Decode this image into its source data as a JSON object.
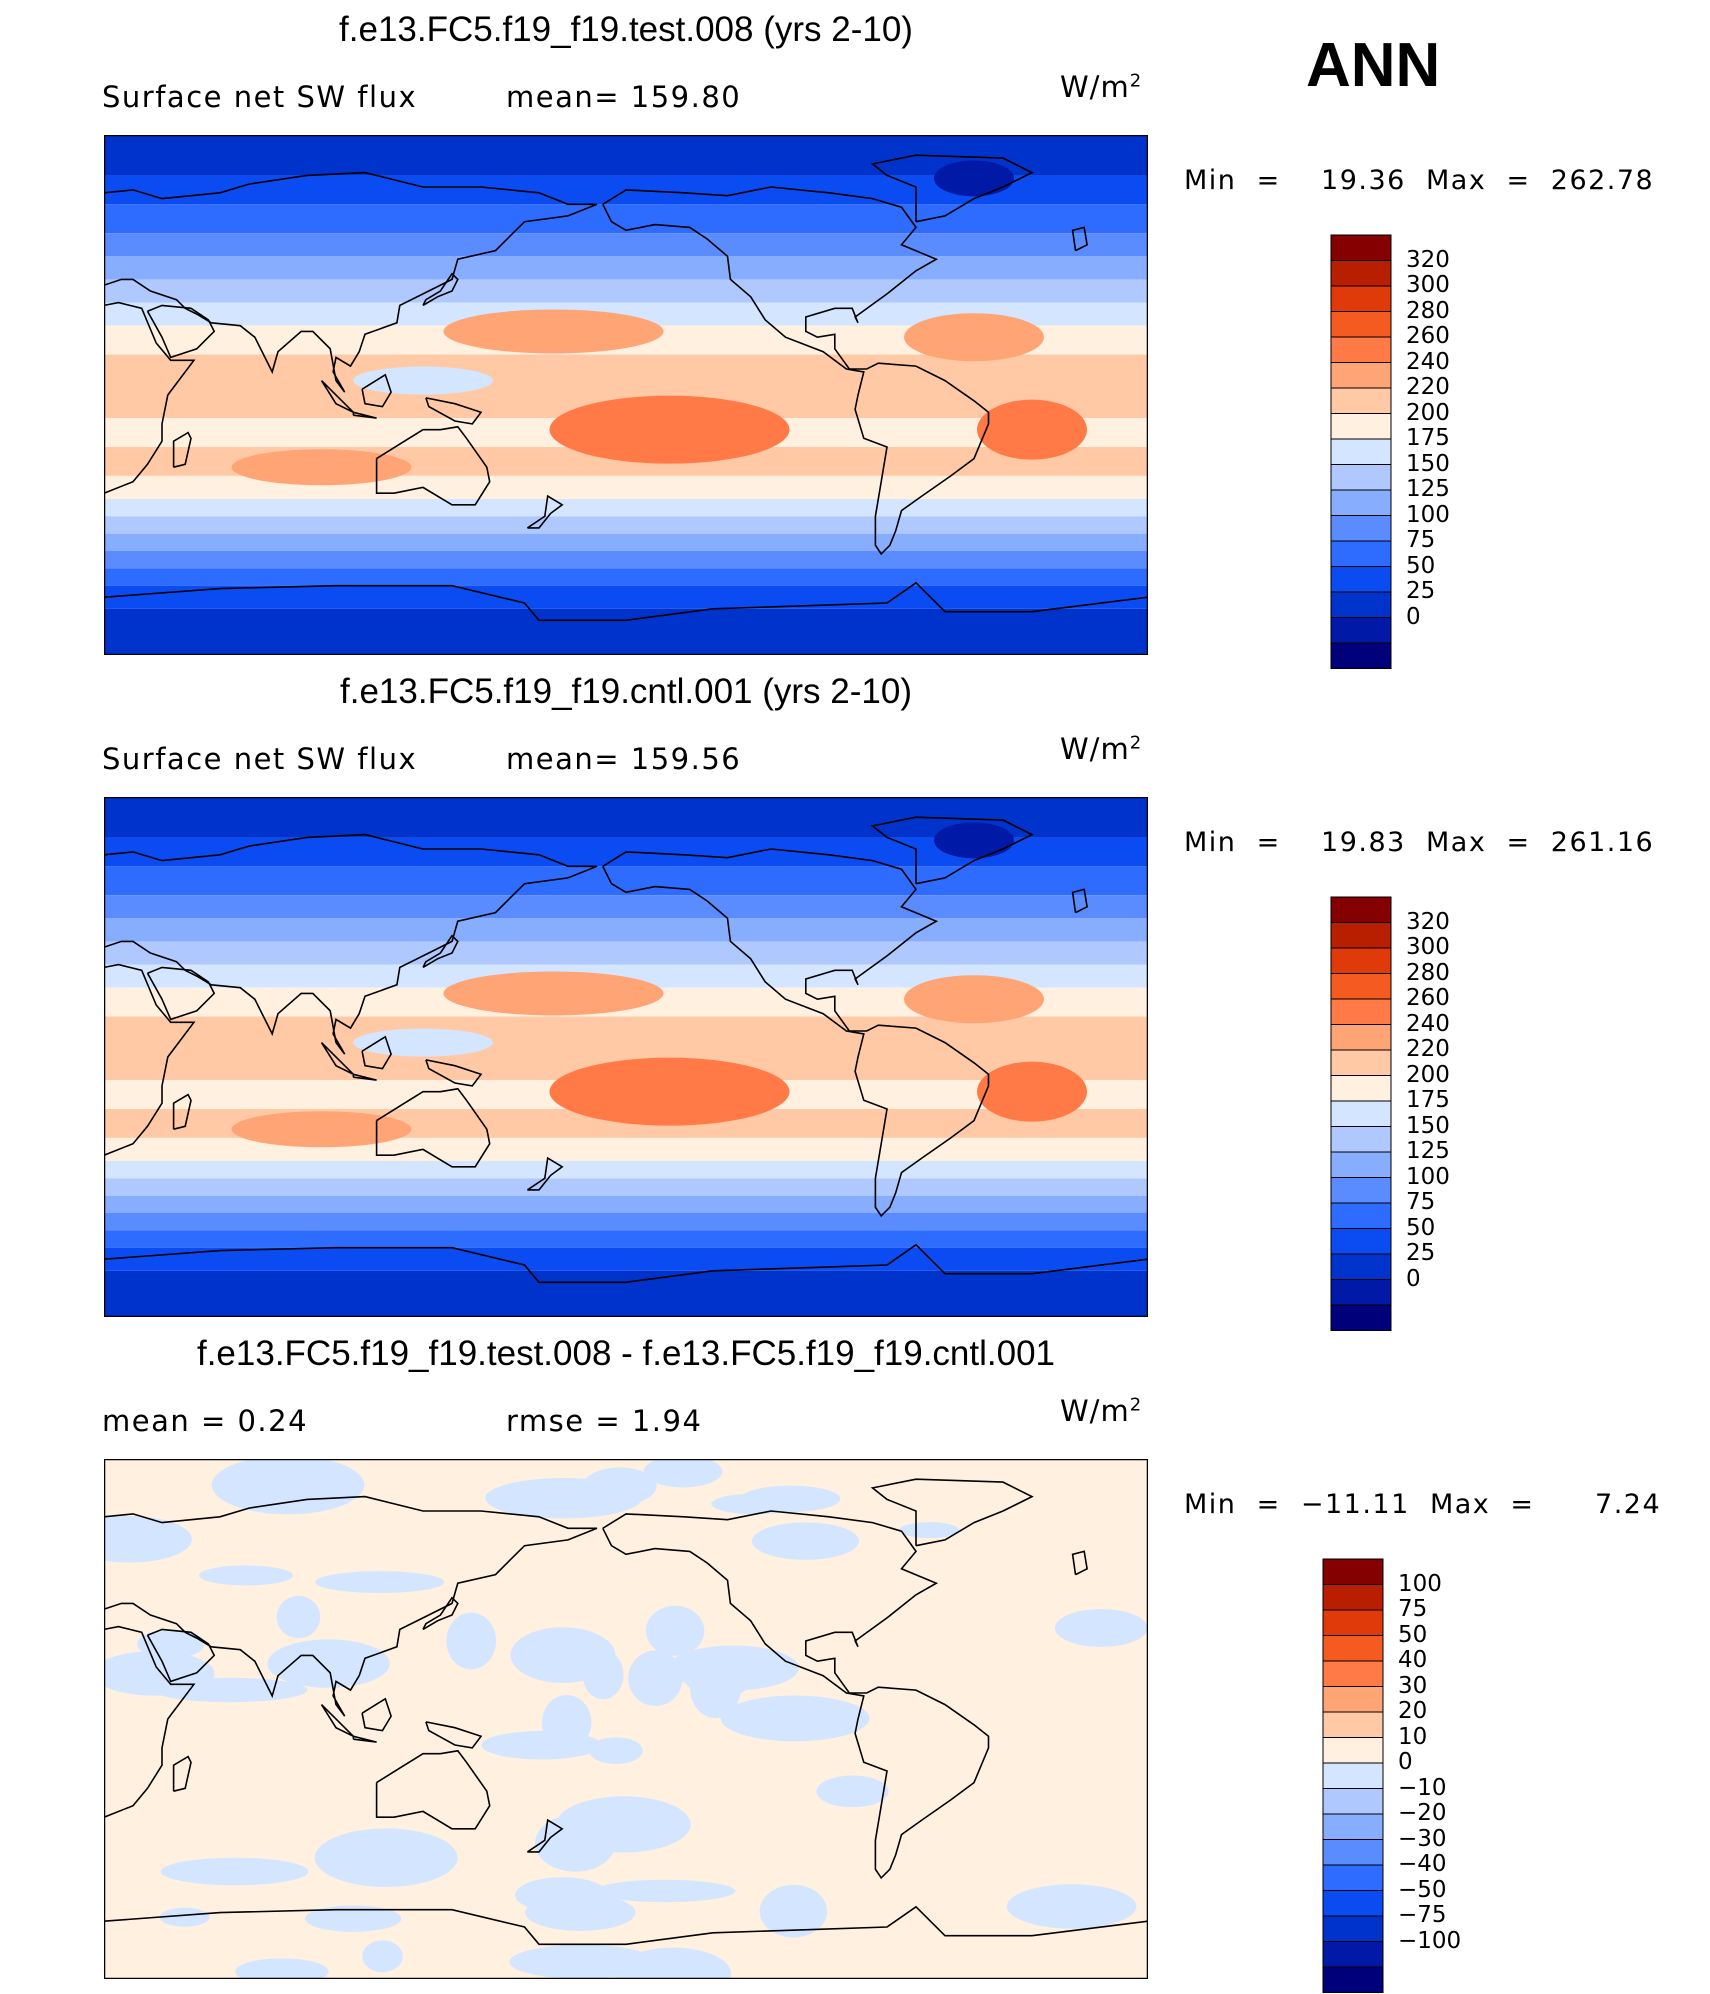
{
  "season": "ANN",
  "units_base": "W/m",
  "units_exp": "2",
  "colors": {
    "abs_scale": [
      "#00007a",
      "#0019a6",
      "#0033cc",
      "#0a4cf2",
      "#2e6bff",
      "#5a8cff",
      "#87adff",
      "#afc9ff",
      "#d4e6ff",
      "#fff0e0",
      "#ffc9a6",
      "#ffa475",
      "#ff7a47",
      "#f55a20",
      "#e03a0a",
      "#b81f00",
      "#850000"
    ],
    "diff_scale": [
      "#00007a",
      "#0019a6",
      "#0033cc",
      "#0a4cf2",
      "#2e6bff",
      "#5a8cff",
      "#87adff",
      "#afc9ff",
      "#d4e6ff",
      "#fff0e0",
      "#ffc9a6",
      "#ffa475",
      "#ff7a47",
      "#f55a20",
      "#e03a0a",
      "#b81f00",
      "#850000"
    ],
    "outline": "#000000"
  },
  "chart_data": [
    {
      "type": "heatmap",
      "title": "f.e13.FC5.f19_f19.test.008 (yrs 2-10)",
      "variable": "Surface net SW flux",
      "stat_text": "mean=  159.80",
      "min": 19.36,
      "max": 262.78,
      "minmax_text": "Min  =    19.36  Max  =  262.78",
      "levels": [
        "320",
        "300",
        "280",
        "260",
        "240",
        "220",
        "200",
        "175",
        "150",
        "125",
        "100",
        "75",
        "50",
        "25",
        "0"
      ]
    },
    {
      "type": "heatmap",
      "title": "f.e13.FC5.f19_f19.cntl.001 (yrs 2-10)",
      "variable": "Surface net SW flux",
      "stat_text": "mean=  159.56",
      "min": 19.83,
      "max": 261.16,
      "minmax_text": "Min  =    19.83  Max  =  261.16",
      "levels": [
        "320",
        "300",
        "280",
        "260",
        "240",
        "220",
        "200",
        "175",
        "150",
        "125",
        "100",
        "75",
        "50",
        "25",
        "0"
      ]
    },
    {
      "type": "heatmap",
      "title": "f.e13.FC5.f19_f19.test.008 - f.e13.FC5.f19_f19.cntl.001",
      "mean_text": "mean  =      0.24",
      "rmse_text": "rmse  =      1.94",
      "min": -11.11,
      "max": 7.24,
      "minmax_text": "Min  =  −11.11  Max  =      7.24",
      "levels": [
        "100",
        "75",
        "50",
        "40",
        "30",
        "20",
        "10",
        "0",
        "−10",
        "−20",
        "−30",
        "−40",
        "−50",
        "−75",
        "−100"
      ]
    }
  ]
}
